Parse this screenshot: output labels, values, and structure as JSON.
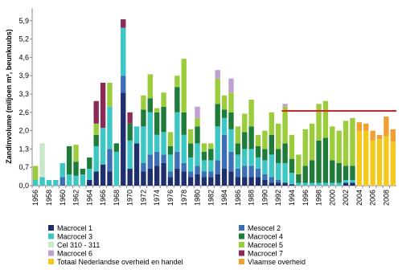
{
  "chart_data": {
    "type": "stacked_bar",
    "y_label": "Zandinvolume (miljoen m³, beunkuubs)",
    "categories": [
      "1956",
      null,
      "1958",
      null,
      "1960",
      null,
      "1962",
      null,
      "1964",
      null,
      "1966",
      null,
      "1968",
      null,
      "1970",
      null,
      "1972",
      null,
      "1974",
      null,
      "1976",
      null,
      "1978",
      null,
      "1980",
      null,
      "1982",
      null,
      "1984",
      null,
      "1986",
      null,
      "1988",
      null,
      "1990",
      null,
      "1992",
      null,
      "1994",
      null,
      "1996",
      null,
      "1998",
      null,
      "2000",
      null,
      "2002",
      null,
      "2004",
      null,
      "2006",
      null,
      "2008",
      null
    ],
    "ylim": [
      0,
      6.3
    ],
    "yticks": [
      {
        "value": 0,
        "label": "0,0"
      },
      {
        "value": 0.65,
        "label": "0,7"
      },
      {
        "value": 1.3,
        "label": "1,3"
      },
      {
        "value": 1.95,
        "label": "2,0"
      },
      {
        "value": 2.6,
        "label": "2,6"
      },
      {
        "value": 3.25,
        "label": "3,3"
      },
      {
        "value": 3.9,
        "label": "3,9"
      },
      {
        "value": 4.55,
        "label": "4,6"
      },
      {
        "value": 5.2,
        "label": "5,2"
      },
      {
        "value": 5.85,
        "label": "5,9"
      }
    ],
    "series": [
      {
        "name": "Macrocel 1",
        "color": "#1f2f6e",
        "values": [
          0,
          0,
          0,
          0,
          0,
          0,
          0,
          0,
          0.2,
          0.5,
          0.75,
          0.5,
          0,
          3.3,
          0.6,
          1.5,
          0.5,
          0.6,
          0.7,
          0.8,
          0.3,
          0.6,
          0.5,
          0.3,
          0.4,
          0.3,
          0.3,
          0.4,
          0.6,
          0.5,
          0.3,
          0.3,
          0.3,
          0.3,
          0.2,
          0.1,
          0.1,
          0.1,
          0.05,
          0,
          0,
          0,
          0,
          0,
          0,
          0,
          0.1,
          0.1,
          0,
          0,
          0,
          0,
          0,
          0
        ]
      },
      {
        "name": "Mesocel 2",
        "color": "#3d6fb6",
        "values": [
          0,
          0,
          0,
          0,
          0.3,
          0,
          0,
          0,
          0,
          0,
          0,
          0.8,
          0,
          0.6,
          0,
          0,
          0.3,
          0.5,
          0.5,
          0.3,
          0.2,
          0.6,
          0.3,
          0.2,
          0.3,
          0.2,
          0.2,
          0.5,
          1.2,
          0.7,
          0.3,
          0.4,
          0.4,
          0.3,
          0.2,
          0.2,
          0.1,
          0,
          0,
          0,
          0,
          0,
          0,
          0,
          0,
          0,
          0,
          0,
          0,
          0,
          0,
          0,
          0,
          0
        ]
      },
      {
        "name": "Macrocel 3",
        "color": "#3cc6c4",
        "values": [
          0.2,
          0.3,
          0.2,
          0.2,
          0.5,
          0.4,
          0.35,
          0.4,
          0.4,
          0.9,
          1.3,
          1.5,
          1.2,
          1.7,
          1.0,
          0.6,
          1.3,
          1.5,
          0.6,
          0.8,
          0.6,
          1.4,
          1.0,
          0.5,
          0.8,
          0.4,
          0.4,
          1.2,
          0.6,
          0.8,
          0.5,
          0.6,
          0.6,
          0.4,
          0.5,
          0.8,
          0.6,
          0.7,
          0.4,
          0.1,
          0.1,
          0.1,
          0.1,
          0.1,
          0.1,
          0.1,
          0.1,
          0.1,
          0,
          0,
          0,
          0,
          0,
          0
        ]
      },
      {
        "name": "Macrocel 4",
        "color": "#1e7b3a",
        "values": [
          0,
          0,
          0,
          0,
          0,
          1.0,
          0.5,
          0.2,
          0.4,
          0.4,
          0,
          0,
          0.3,
          0,
          0.6,
          0,
          0.6,
          0.5,
          0.8,
          0.9,
          0.3,
          0.9,
          0.8,
          0.5,
          0.6,
          0.3,
          0.4,
          0.8,
          0.3,
          0.6,
          0.4,
          0.6,
          0.8,
          0.4,
          0.4,
          0.7,
          0.5,
          0.7,
          0.5,
          0.3,
          0.6,
          0.8,
          1.5,
          1.6,
          0.8,
          0.7,
          0.5,
          0.5,
          0,
          0,
          0,
          0,
          0,
          0
        ]
      },
      {
        "name": "Cel 310 - 311",
        "color": "#c9e7c9",
        "values": [
          0,
          1.2,
          0,
          0,
          0,
          0,
          0,
          0,
          0,
          0,
          0,
          0,
          0,
          0,
          0,
          0,
          0,
          0,
          0,
          0,
          0,
          0,
          0,
          0,
          0,
          0,
          0,
          0,
          0,
          0,
          0,
          0,
          0,
          0,
          0,
          0,
          0,
          0,
          0,
          0,
          0,
          0,
          0,
          0,
          0,
          0,
          0,
          0,
          0,
          0,
          0,
          0,
          0,
          0
        ]
      },
      {
        "name": "Macrocel 5",
        "color": "#9bcc3c",
        "values": [
          0.5,
          0,
          0,
          0,
          0,
          0,
          0.6,
          0,
          0,
          0.4,
          0,
          0.85,
          0,
          0,
          0,
          0,
          0.5,
          0.85,
          0.15,
          0.5,
          0.5,
          0.4,
          1.9,
          0.5,
          0.3,
          0.3,
          0.2,
          0.9,
          0.5,
          0.7,
          0.6,
          0.65,
          0.95,
          0.4,
          0.65,
          0.8,
          0.9,
          1.3,
          0.85,
          0.7,
          1.3,
          1.3,
          1.3,
          1.3,
          1.2,
          1.15,
          1.6,
          1.7,
          0,
          0,
          0,
          0,
          0,
          0
        ]
      },
      {
        "name": "Macrocel 6",
        "color": "#c0a0d4",
        "values": [
          0,
          0,
          0,
          0,
          0,
          0,
          0,
          0,
          0,
          0,
          0,
          0,
          0,
          0,
          0,
          0,
          0,
          0,
          0,
          0,
          0,
          0,
          0,
          0,
          0.4,
          0,
          0,
          0.3,
          0,
          0.5,
          0,
          0,
          0,
          0,
          0,
          0,
          0,
          0.1,
          0,
          0,
          0,
          0,
          0,
          0,
          0,
          0,
          0,
          0,
          0,
          0,
          0,
          0,
          0,
          0
        ]
      },
      {
        "name": "Macrocel 7",
        "color": "#8c2a55",
        "values": [
          0,
          0,
          0,
          0,
          0,
          0,
          0,
          0,
          0,
          0.8,
          1.6,
          0,
          0,
          0.3,
          0.4,
          0,
          0,
          0,
          0,
          0,
          0,
          0,
          0,
          0,
          0,
          0,
          0,
          0,
          0,
          0,
          0,
          0,
          0,
          0,
          0,
          0,
          0,
          0,
          0,
          0,
          0,
          0,
          0,
          0,
          0,
          0,
          0,
          0,
          0,
          0,
          0,
          0,
          0,
          0
        ]
      },
      {
        "name": "Totaal Nederlandse overheid en handel",
        "color": "#f5c81e",
        "values": [
          0,
          0,
          0,
          0,
          0,
          0,
          0,
          0,
          0,
          0,
          0,
          0,
          0,
          0,
          0,
          0,
          0,
          0,
          0,
          0,
          0,
          0,
          0,
          0,
          0,
          0,
          0,
          0,
          0,
          0,
          0,
          0,
          0,
          0,
          0,
          0,
          0,
          0,
          0,
          0,
          0,
          0,
          0,
          0,
          0,
          0,
          0,
          0,
          1.95,
          1.95,
          1.6,
          1.65,
          1.75,
          1.55
        ]
      },
      {
        "name": "Vlaamse overheid",
        "color": "#f0a030",
        "values": [
          0,
          0,
          0,
          0,
          0,
          0,
          0,
          0,
          0,
          0,
          0,
          0,
          0,
          0,
          0,
          0,
          0,
          0,
          0,
          0,
          0,
          0,
          0,
          0,
          0,
          0,
          0,
          0,
          0,
          0,
          0,
          0,
          0,
          0,
          0,
          0,
          0,
          0,
          0,
          0,
          0,
          0,
          0,
          0,
          0,
          0,
          0,
          0,
          0.3,
          0.25,
          0.35,
          0.15,
          0.7,
          0.45
        ]
      }
    ],
    "hline": {
      "value": 2.65,
      "start": 1993,
      "end": 2009,
      "color": "#e02020"
    }
  }
}
